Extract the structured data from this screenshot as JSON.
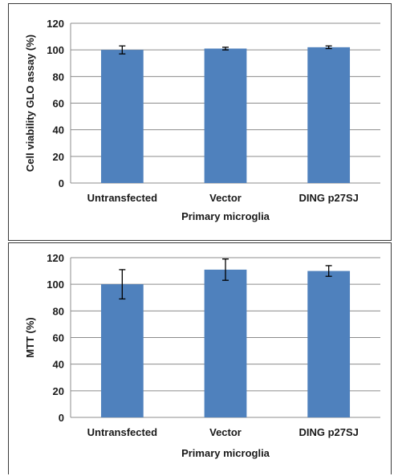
{
  "chart_data": [
    {
      "type": "bar",
      "categories": [
        "Untransfected",
        "Vector",
        "DING p27SJ"
      ],
      "values": [
        100,
        101,
        102
      ],
      "error": [
        3,
        1,
        1
      ],
      "xlabel": "Primary microglia",
      "ylabel": "Cell viability GLO assay (%)",
      "ylim": [
        0,
        120
      ],
      "yticks": [
        0,
        20,
        40,
        60,
        80,
        100,
        120
      ],
      "grid": true,
      "bar_color": "#4f81bd"
    },
    {
      "type": "bar",
      "categories": [
        "Untransfected",
        "Vector",
        "DING p27SJ"
      ],
      "values": [
        100,
        111,
        110
      ],
      "error": [
        11,
        8,
        4
      ],
      "xlabel": "Primary microglia",
      "ylabel": "MTT (%)",
      "ylim": [
        0,
        120
      ],
      "yticks": [
        0,
        20,
        40,
        60,
        80,
        100,
        120
      ],
      "grid": true,
      "bar_color": "#4f81bd"
    }
  ]
}
